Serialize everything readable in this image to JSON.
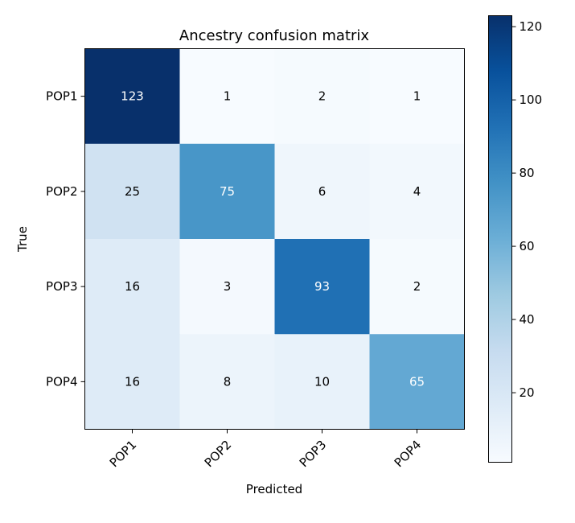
{
  "chart_data": {
    "type": "heatmap",
    "title": "Ancestry confusion matrix",
    "xlabel": "Predicted",
    "ylabel": "True",
    "x_categories": [
      "POP1",
      "POP2",
      "POP3",
      "POP4"
    ],
    "y_categories": [
      "POP1",
      "POP2",
      "POP3",
      "POP4"
    ],
    "values": [
      [
        123,
        1,
        2,
        1
      ],
      [
        25,
        75,
        6,
        4
      ],
      [
        16,
        3,
        93,
        2
      ],
      [
        16,
        8,
        10,
        65
      ]
    ],
    "colormap": "Blues",
    "color_range": [
      1,
      123
    ],
    "colorbar_ticks": [
      "20",
      "40",
      "60",
      "80",
      "100",
      "120"
    ],
    "grid": false
  }
}
